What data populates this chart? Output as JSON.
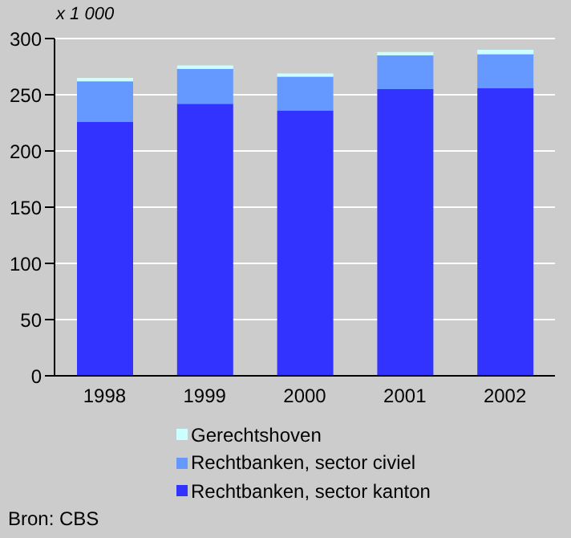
{
  "chart_data": {
    "type": "bar",
    "stacked": true,
    "ylabel": "x 1 000",
    "categories": [
      "1998",
      "1999",
      "2000",
      "2001",
      "2002"
    ],
    "series": [
      {
        "name": "Rechtbanken, sector kanton",
        "color": "#3333ff",
        "values": [
          226,
          242,
          236,
          255,
          256
        ]
      },
      {
        "name": "Rechtbanken, sector civiel",
        "color": "#6699ff",
        "values": [
          36,
          31,
          30,
          30,
          30
        ]
      },
      {
        "name": "Gerechtshoven",
        "color": "#ccffff",
        "values": [
          3,
          3,
          3,
          3,
          4
        ]
      }
    ],
    "ylim": [
      0,
      300
    ],
    "yticks": [
      0,
      50,
      100,
      150,
      200,
      250,
      300
    ],
    "grid": "y",
    "legend": "bottom",
    "annotations": [
      "Bron: CBS"
    ]
  }
}
